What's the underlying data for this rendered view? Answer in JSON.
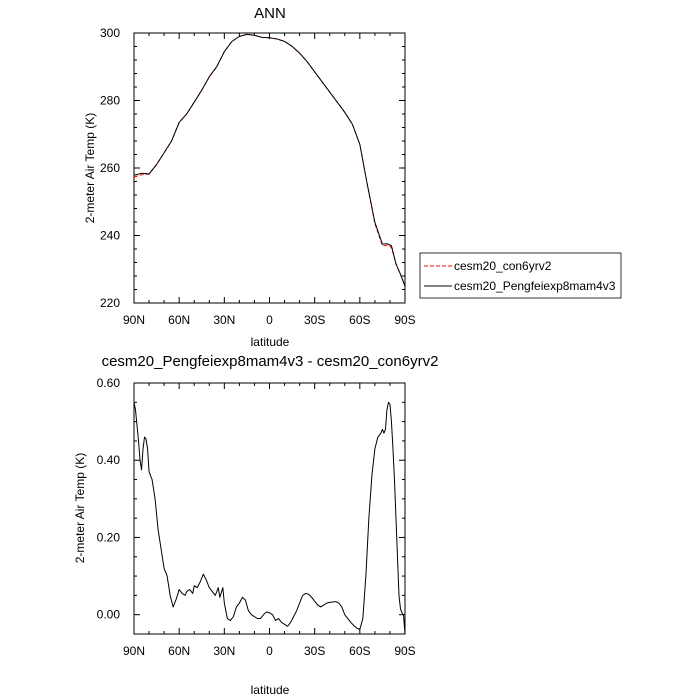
{
  "chart_data": [
    {
      "type": "line",
      "title": "ANN",
      "xlabel": "latitude",
      "ylabel": "2-meter Air Temp (K)",
      "xlim": [
        90,
        -90
      ],
      "ylim": [
        220,
        300
      ],
      "xticks": [
        {
          "value": 90,
          "label": "90N"
        },
        {
          "value": 60,
          "label": "60N"
        },
        {
          "value": 30,
          "label": "30N"
        },
        {
          "value": 0,
          "label": "0"
        },
        {
          "value": -30,
          "label": "30S"
        },
        {
          "value": -60,
          "label": "60S"
        },
        {
          "value": -90,
          "label": "90S"
        }
      ],
      "yticks": [
        {
          "value": 220,
          "label": "220"
        },
        {
          "value": 240,
          "label": "240"
        },
        {
          "value": 260,
          "label": "260"
        },
        {
          "value": 280,
          "label": "280"
        },
        {
          "value": 300,
          "label": "300"
        }
      ],
      "legend": {
        "placement": "right"
      },
      "series": [
        {
          "name": "cesm20_con6yrv2",
          "color": "#ff0000",
          "dash": "dashed",
          "x": [
            90,
            85,
            80,
            75,
            70,
            65,
            60,
            55,
            50,
            45,
            40,
            35,
            30,
            25,
            20,
            15,
            10,
            5,
            0,
            -5,
            -10,
            -15,
            -20,
            -25,
            -30,
            -35,
            -40,
            -45,
            -50,
            -55,
            -60,
            -65,
            -70,
            -75,
            -78,
            -81,
            -84,
            -87,
            -90
          ],
          "y": [
            257.3,
            258.0,
            258.2,
            261.0,
            264.5,
            268.0,
            273.5,
            276.0,
            279.5,
            283.0,
            287.0,
            290.0,
            294.5,
            297.5,
            299.0,
            299.6,
            299.3,
            298.7,
            298.6,
            298.2,
            297.5,
            296.0,
            294.0,
            291.5,
            288.5,
            285.5,
            282.5,
            279.5,
            276.5,
            273.0,
            267.0,
            255.0,
            243.5,
            237.0,
            237.0,
            236.5,
            231.5,
            228.5,
            225.0
          ]
        },
        {
          "name": "cesm20_Pengfeiexp8mam4v3",
          "color": "#000000",
          "dash": "solid",
          "x": [
            90,
            85,
            80,
            75,
            70,
            65,
            60,
            55,
            50,
            45,
            40,
            35,
            30,
            25,
            20,
            15,
            10,
            5,
            0,
            -5,
            -10,
            -15,
            -20,
            -25,
            -30,
            -35,
            -40,
            -45,
            -50,
            -55,
            -60,
            -65,
            -70,
            -75,
            -78,
            -81,
            -84,
            -87,
            -90
          ],
          "y": [
            257.85,
            258.43,
            258.25,
            261.04,
            264.52,
            268.05,
            273.53,
            276.03,
            279.5,
            283.08,
            287.05,
            290.06,
            294.49,
            297.48,
            299.0,
            299.59,
            299.32,
            298.71,
            298.6,
            298.24,
            297.53,
            296.05,
            294.05,
            291.5,
            288.5,
            285.5,
            282.5,
            279.5,
            276.5,
            273.0,
            266.98,
            255.06,
            243.9,
            237.45,
            237.55,
            237.0,
            231.6,
            228.5,
            224.97
          ]
        }
      ]
    },
    {
      "type": "line",
      "title": "cesm20_Pengfeiexp8mam4v3 - cesm20_con6yrv2",
      "xlabel": "latitude",
      "ylabel": "2-meter Air Temp (K)",
      "xlim": [
        90,
        -90
      ],
      "ylim": [
        -0.05,
        0.6
      ],
      "xticks": [
        {
          "value": 90,
          "label": "90N"
        },
        {
          "value": 60,
          "label": "60N"
        },
        {
          "value": 30,
          "label": "30N"
        },
        {
          "value": 0,
          "label": "0"
        },
        {
          "value": -30,
          "label": "30S"
        },
        {
          "value": -60,
          "label": "60S"
        },
        {
          "value": -90,
          "label": "90S"
        }
      ],
      "yticks": [
        {
          "value": 0.0,
          "label": "0.00"
        },
        {
          "value": 0.2,
          "label": "0.20"
        },
        {
          "value": 0.4,
          "label": "0.40"
        },
        {
          "value": 0.6,
          "label": "0.60"
        }
      ],
      "series": [
        {
          "color": "#000000",
          "x": [
            90,
            89,
            87,
            86,
            85,
            84,
            83,
            82,
            81,
            80,
            78,
            76,
            74,
            72,
            70,
            68,
            66,
            64,
            63,
            62,
            60,
            58,
            56,
            55,
            53,
            51,
            50,
            48,
            46,
            45,
            44,
            42,
            40,
            38,
            36,
            34,
            33,
            31,
            30,
            28,
            26,
            24,
            22,
            20,
            18,
            16,
            14,
            12,
            10,
            8,
            6,
            4,
            2,
            0,
            -2,
            -4,
            -6,
            -8,
            -10,
            -12,
            -14,
            -16,
            -18,
            -20,
            -22,
            -24,
            -26,
            -28,
            -30,
            -32,
            -34,
            -36,
            -38,
            -40,
            -42,
            -44,
            -46,
            -48,
            -50,
            -52,
            -54,
            -56,
            -58,
            -60,
            -62,
            -64,
            -66,
            -68,
            -70,
            -72,
            -74,
            -75,
            -76,
            -77,
            -78,
            -79,
            -80,
            -81,
            -82,
            -83,
            -84,
            -85,
            -86,
            -87,
            -88,
            -89,
            -90
          ],
          "y": [
            0.55,
            0.53,
            0.45,
            0.4,
            0.375,
            0.43,
            0.46,
            0.455,
            0.43,
            0.37,
            0.35,
            0.3,
            0.22,
            0.17,
            0.12,
            0.1,
            0.05,
            0.02,
            0.03,
            0.04,
            0.065,
            0.055,
            0.05,
            0.06,
            0.065,
            0.055,
            0.075,
            0.07,
            0.085,
            0.095,
            0.105,
            0.09,
            0.07,
            0.06,
            0.05,
            0.07,
            0.045,
            0.07,
            0.03,
            -0.01,
            -0.015,
            -0.005,
            0.02,
            0.03,
            0.045,
            0.038,
            0.01,
            0.0,
            -0.005,
            -0.01,
            -0.01,
            0.0,
            0.007,
            0.005,
            0.0,
            -0.015,
            -0.01,
            -0.02,
            -0.025,
            -0.03,
            -0.02,
            -0.005,
            0.01,
            0.03,
            0.05,
            0.055,
            0.053,
            0.045,
            0.035,
            0.025,
            0.02,
            0.025,
            0.03,
            0.032,
            0.033,
            0.034,
            0.03,
            0.02,
            0.0,
            -0.01,
            -0.02,
            -0.028,
            -0.035,
            -0.038,
            -0.01,
            0.1,
            0.25,
            0.36,
            0.43,
            0.46,
            0.47,
            0.48,
            0.47,
            0.48,
            0.53,
            0.55,
            0.545,
            0.5,
            0.43,
            0.35,
            0.25,
            0.15,
            0.05,
            0.015,
            0.005,
            0.0,
            -0.05
          ]
        }
      ]
    }
  ]
}
